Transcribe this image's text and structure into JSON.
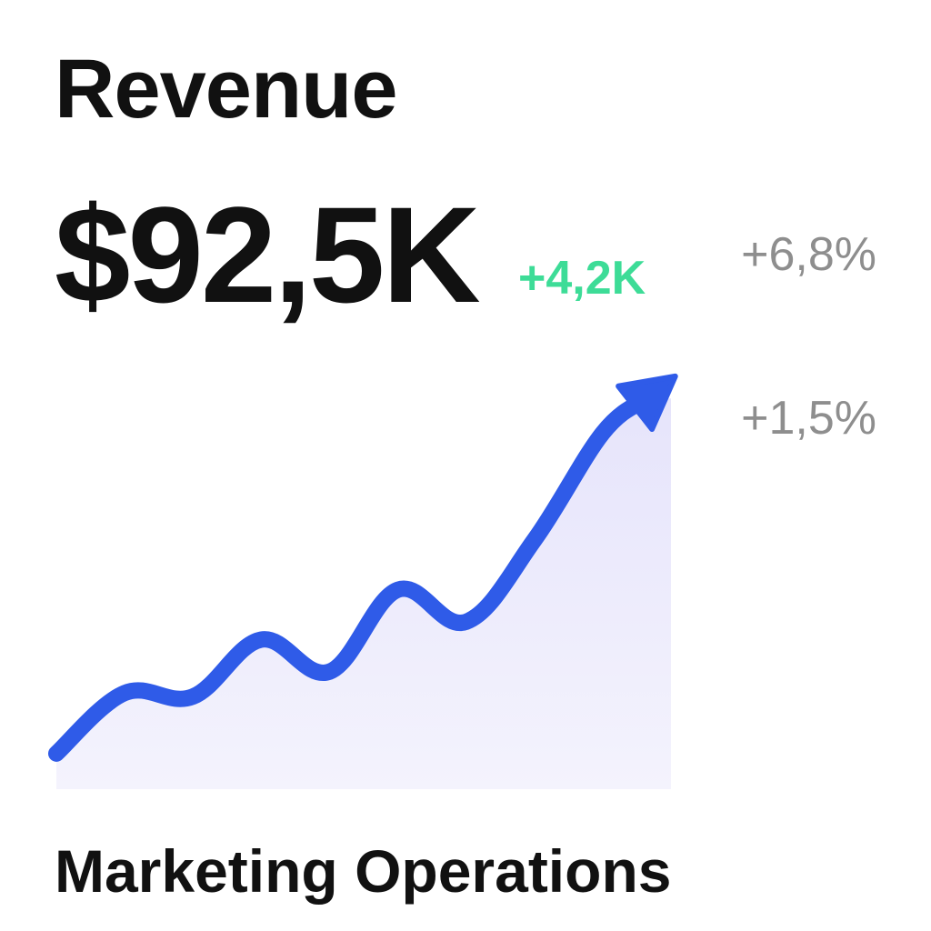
{
  "card": {
    "title": "Revenue",
    "metric_value": "$92,5K",
    "delta_absolute": "+4,2K",
    "delta_percent_1": "+6,8%",
    "delta_percent_2": "+1,5%",
    "footer": "Marketing Operations"
  },
  "colors": {
    "line": "#2f5be8",
    "area_top": "#e6e4fb",
    "area_bottom": "#f4f3fd",
    "positive": "#3ddc97",
    "muted": "#8e8e8e"
  },
  "chart_data": {
    "type": "area",
    "title": "",
    "xlabel": "",
    "ylabel": "",
    "x": [
      0,
      1,
      2,
      3,
      4,
      5,
      6,
      7,
      8,
      9
    ],
    "values": [
      10,
      27,
      26,
      42,
      33,
      56,
      47,
      70,
      100,
      115
    ],
    "ylim": [
      0,
      120
    ],
    "grid": false,
    "legend": "none",
    "end_marker": "arrow"
  }
}
